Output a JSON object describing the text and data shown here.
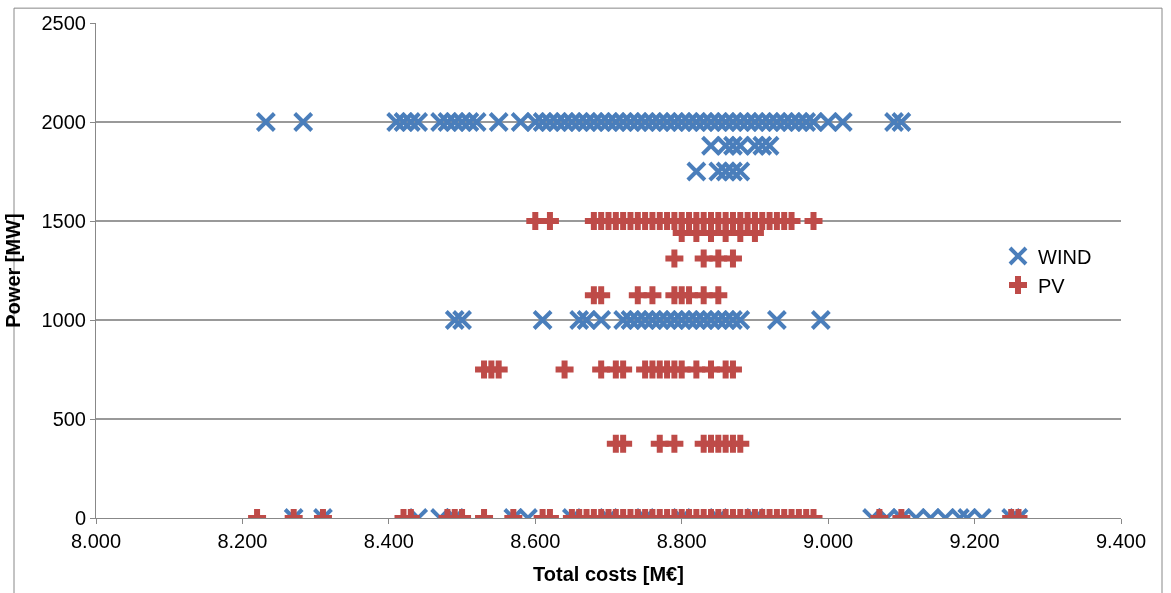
{
  "chart_data": {
    "type": "scatter",
    "xlabel": "Total costs [M€]",
    "ylabel": "Power [MW]",
    "xlim": [
      8000,
      9400
    ],
    "xticks": [
      {
        "value": 8000,
        "label": "8.000"
      },
      {
        "value": 8200,
        "label": "8.200"
      },
      {
        "value": 8400,
        "label": "8.400"
      },
      {
        "value": 8600,
        "label": "8.600"
      },
      {
        "value": 8800,
        "label": "8.800"
      },
      {
        "value": 9000,
        "label": "9.000"
      },
      {
        "value": 9200,
        "label": "9.200"
      },
      {
        "value": 9400,
        "label": "9.400"
      }
    ],
    "ylim": [
      0,
      2500
    ],
    "yticks": [
      0,
      500,
      1000,
      1500,
      2000,
      2500
    ],
    "grid": "y",
    "legend": "right",
    "series": [
      {
        "name": "WIND",
        "color": "#4a7ebb",
        "marker": "x",
        "x": [
          8232,
          8283,
          8410,
          8420,
          8430,
          8440,
          8470,
          8480,
          8490,
          8500,
          8510,
          8520,
          8550,
          8580,
          8600,
          8610,
          8620,
          8630,
          8640,
          8650,
          8660,
          8670,
          8680,
          8690,
          8700,
          8710,
          8720,
          8730,
          8740,
          8750,
          8760,
          8770,
          8780,
          8790,
          8800,
          8810,
          8820,
          8830,
          8840,
          8850,
          8860,
          8870,
          8880,
          8890,
          8900,
          8910,
          8920,
          8930,
          8940,
          8950,
          8960,
          8970,
          8980,
          9000,
          9020,
          9090,
          9100,
          8840,
          8860,
          8870,
          8880,
          8900,
          8910,
          8920,
          8820,
          8850,
          8860,
          8870,
          8880,
          8490,
          8500,
          8610,
          8660,
          8670,
          8690,
          8720,
          8730,
          8740,
          8750,
          8760,
          8770,
          8780,
          8790,
          8800,
          8810,
          8820,
          8830,
          8840,
          8850,
          8860,
          8870,
          8880,
          8930,
          8990,
          8270,
          8310,
          8440,
          8470,
          8490,
          8570,
          8590,
          8650,
          8700,
          8750,
          8800,
          8850,
          8900,
          9060,
          9080,
          9100,
          9120,
          9140,
          9160,
          9180,
          9190,
          9210,
          9250,
          9260
        ],
        "values": [
          2000,
          2000,
          2000,
          2000,
          2000,
          2000,
          2000,
          2000,
          2000,
          2000,
          2000,
          2000,
          2000,
          2000,
          2000,
          2000,
          2000,
          2000,
          2000,
          2000,
          2000,
          2000,
          2000,
          2000,
          2000,
          2000,
          2000,
          2000,
          2000,
          2000,
          2000,
          2000,
          2000,
          2000,
          2000,
          2000,
          2000,
          2000,
          2000,
          2000,
          2000,
          2000,
          2000,
          2000,
          2000,
          2000,
          2000,
          2000,
          2000,
          2000,
          2000,
          2000,
          2000,
          2000,
          2000,
          2000,
          2000,
          1880,
          1880,
          1880,
          1880,
          1880,
          1880,
          1880,
          1750,
          1750,
          1750,
          1750,
          1750,
          1000,
          1000,
          1000,
          1000,
          1000,
          1000,
          1000,
          1000,
          1000,
          1000,
          1000,
          1000,
          1000,
          1000,
          1000,
          1000,
          1000,
          1000,
          1000,
          1000,
          1000,
          1000,
          1000,
          1000,
          1000,
          0,
          0,
          0,
          0,
          0,
          0,
          0,
          0,
          0,
          0,
          0,
          0,
          0,
          0,
          0,
          0,
          0,
          0,
          0,
          0,
          0,
          0,
          0,
          0
        ]
      },
      {
        "name": "PV",
        "color": "#be4b48",
        "marker": "cross",
        "x": [
          8600,
          8620,
          8680,
          8690,
          8700,
          8710,
          8720,
          8730,
          8740,
          8750,
          8760,
          8770,
          8780,
          8790,
          8800,
          8810,
          8820,
          8830,
          8840,
          8850,
          8860,
          8870,
          8880,
          8890,
          8900,
          8910,
          8920,
          8930,
          8940,
          8950,
          8980,
          8800,
          8820,
          8840,
          8860,
          8880,
          8900,
          8790,
          8830,
          8850,
          8870,
          8680,
          8690,
          8740,
          8760,
          8790,
          8800,
          8810,
          8830,
          8850,
          8530,
          8540,
          8550,
          8640,
          8690,
          8710,
          8720,
          8750,
          8760,
          8770,
          8780,
          8790,
          8800,
          8820,
          8840,
          8860,
          8870,
          8710,
          8720,
          8770,
          8790,
          8830,
          8840,
          8850,
          8860,
          8870,
          8880,
          8220,
          8270,
          8310,
          8420,
          8430,
          8480,
          8490,
          8500,
          8530,
          8570,
          8610,
          8620,
          8650,
          8660,
          8670,
          8680,
          8690,
          8700,
          8710,
          8720,
          8730,
          8740,
          8750,
          8760,
          8770,
          8780,
          8790,
          8800,
          8810,
          8820,
          8830,
          8840,
          8850,
          8860,
          8870,
          8880,
          8890,
          8900,
          8910,
          8920,
          8930,
          8940,
          8950,
          8960,
          8970,
          8980,
          9070,
          9100,
          9250,
          9260
        ],
        "values": [
          1500,
          1500,
          1500,
          1500,
          1500,
          1500,
          1500,
          1500,
          1500,
          1500,
          1500,
          1500,
          1500,
          1500,
          1500,
          1500,
          1500,
          1500,
          1500,
          1500,
          1500,
          1500,
          1500,
          1500,
          1500,
          1500,
          1500,
          1500,
          1500,
          1500,
          1500,
          1440,
          1440,
          1440,
          1440,
          1440,
          1440,
          1310,
          1310,
          1310,
          1310,
          1125,
          1125,
          1125,
          1125,
          1125,
          1125,
          1125,
          1125,
          1125,
          750,
          750,
          750,
          750,
          750,
          750,
          750,
          750,
          750,
          750,
          750,
          750,
          750,
          750,
          750,
          750,
          750,
          375,
          375,
          375,
          375,
          375,
          375,
          375,
          375,
          375,
          375,
          0,
          0,
          0,
          0,
          0,
          0,
          0,
          0,
          0,
          0,
          0,
          0,
          0,
          0,
          0,
          0,
          0,
          0,
          0,
          0,
          0,
          0,
          0,
          0,
          0,
          0,
          0,
          0,
          0,
          0,
          0,
          0,
          0,
          0,
          0,
          0,
          0,
          0,
          0,
          0,
          0,
          0,
          0,
          0,
          0,
          0,
          0,
          0,
          0,
          0
        ]
      }
    ]
  }
}
